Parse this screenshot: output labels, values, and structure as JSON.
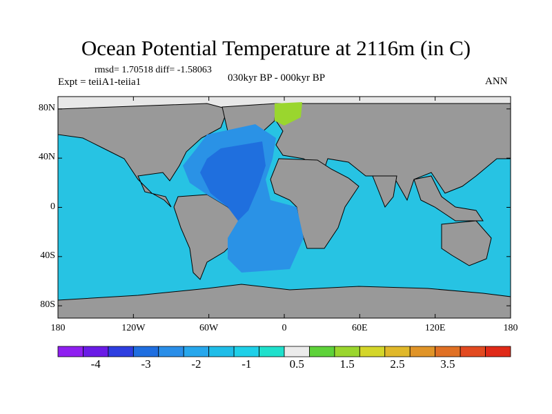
{
  "title": "Ocean Potential Temperature at 2116m (in C)",
  "stats": "rmsd= 1.70518 diff= -1.58063",
  "experiment": "Expt = teiiA1-teiia1",
  "period": "030kyr BP - 000kyr BP",
  "season": "ANN",
  "lat_labels": [
    "80N",
    "40N",
    "0",
    "40S",
    "80S"
  ],
  "lat_values": [
    80,
    40,
    0,
    -40,
    -80
  ],
  "lon_labels": [
    "180",
    "120W",
    "60W",
    "0",
    "60E",
    "120E",
    "180"
  ],
  "lon_values": [
    -180,
    -120,
    -60,
    0,
    60,
    120,
    180
  ],
  "colorbar": {
    "colors": [
      "#8f1ff0",
      "#6a1be6",
      "#2e3ee0",
      "#1f6ee0",
      "#2a8ee8",
      "#27a7ec",
      "#20bde8",
      "#1fd0e8",
      "#1fe0cc",
      "#ebebeb",
      "#5ed23a",
      "#9ad62e",
      "#d4d62a",
      "#e0b82a",
      "#e09428",
      "#e07024",
      "#e24a20",
      "#e02a18"
    ],
    "labels": [
      "-4",
      "-3",
      "-2",
      "-1",
      "0.5",
      "1.5",
      "2.5",
      "3.5"
    ],
    "label_slots": [
      1,
      3,
      5,
      7,
      9,
      11,
      13,
      15
    ]
  },
  "colors": {
    "land": "#999999",
    "ocean_base": "#27c3e3",
    "atlantic_mid": "#2a92e6",
    "atlantic_deep": "#1f6fde",
    "ice": "#e8e8e8",
    "arctic_anom": "#9ad62e"
  }
}
